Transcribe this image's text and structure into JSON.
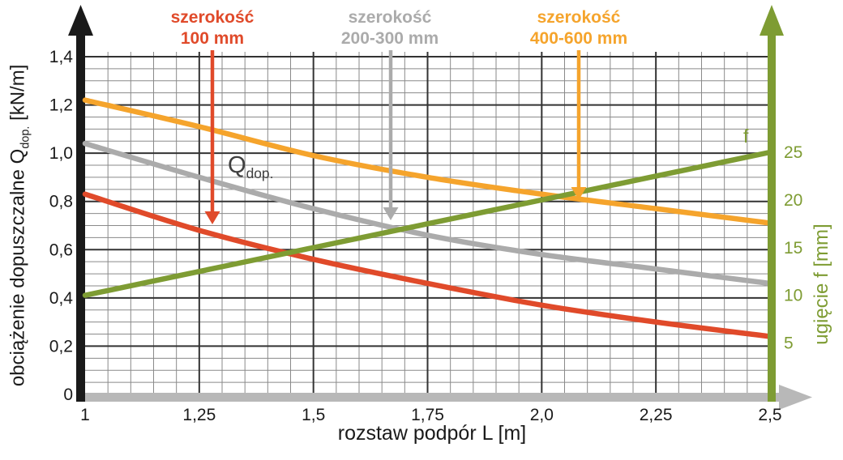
{
  "colors": {
    "red": "#E04A2A",
    "gray": "#ABABAB",
    "orange": "#F5A42C",
    "green": "#7E9C33",
    "axis_black": "#1A1A1A",
    "axis_gray": "#B8B8B8",
    "grid_minor": "#8A8A8A",
    "grid_major": "#333333",
    "annotation_text": "#3F3F3F",
    "background": "#FFFFFF"
  },
  "header_labels": [
    {
      "line1": "szerokość",
      "line2": "100 mm"
    },
    {
      "line1": "szerokość",
      "line2": "200-300 mm"
    },
    {
      "line1": "szerokość",
      "line2": "400-600 mm"
    }
  ],
  "annotations": {
    "q_main": "Q",
    "q_sub": "dop.",
    "f": "f"
  },
  "axes": {
    "x": {
      "title": "rozstaw podpór L [m]",
      "ticks": [
        "1",
        "1,25",
        "1,5",
        "1,75",
        "2,0",
        "2,25",
        "2,5"
      ]
    },
    "y_left": {
      "title_pre": "obciążenie dopuszczalne Q",
      "title_sub": "dop.",
      "title_post": " [kN/m]",
      "ticks": [
        "0",
        "0,2",
        "0,4",
        "0,6",
        "0,8",
        "1,0",
        "1,2",
        "1,4"
      ]
    },
    "y_right": {
      "title": "ugięcie f [mm]",
      "ticks": [
        "5",
        "10",
        "15",
        "20",
        "25"
      ]
    }
  },
  "chart_data": {
    "type": "line",
    "title": "",
    "x": [
      1,
      1.25,
      1.5,
      1.75,
      2.0,
      2.25,
      2.5
    ],
    "xlabel": "rozstaw podpór L [m]",
    "ylabel_left": "obciążenie dopuszczalne Qdop. [kN/m]",
    "ylabel_right": "ugięcie f [mm]",
    "xlim": [
      1,
      2.5
    ],
    "ylim_left": [
      0,
      1.4
    ],
    "yticks_left": [
      0,
      0.2,
      0.4,
      0.6,
      0.8,
      1.0,
      1.2,
      1.4
    ],
    "yticks_right": [
      5,
      10,
      15,
      20,
      25
    ],
    "grid": {
      "visible": true,
      "minor_step_x": 0.05,
      "minor_step_y": 0.05,
      "major_step_x": 0.25,
      "major_step_y": 0.2
    },
    "legend_position": "top labels with arrows pointing to curves",
    "series": [
      {
        "name": "szerokość 100 mm",
        "axis": "left",
        "color": "#E04A2A",
        "values": [
          0.83,
          0.68,
          0.56,
          0.46,
          0.37,
          0.3,
          0.24
        ]
      },
      {
        "name": "szerokość 200-300 mm",
        "axis": "left",
        "color": "#ABABAB",
        "values": [
          1.04,
          0.9,
          0.77,
          0.66,
          0.58,
          0.52,
          0.46
        ]
      },
      {
        "name": "szerokość 400-600 mm",
        "axis": "left",
        "color": "#F5A42C",
        "values": [
          1.22,
          1.11,
          0.99,
          0.9,
          0.83,
          0.77,
          0.71
        ]
      },
      {
        "name": "f — ugięcie",
        "axis": "right",
        "color": "#7E9C33",
        "values": [
          10,
          12.5,
          15,
          17.5,
          20,
          22.5,
          25
        ]
      }
    ],
    "annotation_arrows": [
      {
        "series": "szerokość 100 mm",
        "at_x": 1.28
      },
      {
        "series": "szerokość 200-300 mm",
        "at_x": 1.67
      },
      {
        "series": "szerokość 400-600 mm",
        "at_x": 2.08
      }
    ]
  }
}
